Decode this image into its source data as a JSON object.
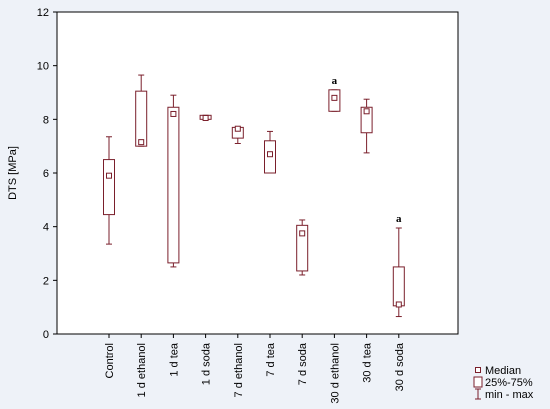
{
  "chart_data": {
    "type": "boxplot",
    "ylabel": "DTS [MPa]",
    "ylim": [
      0,
      12
    ],
    "yticks": [
      0,
      2,
      4,
      6,
      8,
      10,
      12
    ],
    "grid": false,
    "legend_position": "bottom-right",
    "legend": [
      {
        "key": "median",
        "label": "Median"
      },
      {
        "key": "box",
        "label": "25%-75%"
      },
      {
        "key": "whisker",
        "label": "min - max"
      }
    ],
    "colors": {
      "box": "#7a1f2b",
      "axis": "#000000",
      "background": "#eef2f8",
      "plot_bg": "#ffffff"
    },
    "categories": [
      "Control",
      "1 d ethanol",
      "1 d tea",
      "1 d soda",
      "7 d ethanol",
      "7 d tea",
      "7 d soda",
      "30 d ethanol",
      "30 d tea",
      "30 d soda"
    ],
    "boxes": [
      {
        "min": 3.35,
        "q1": 4.45,
        "median": 5.9,
        "q3": 6.5,
        "max": 7.35,
        "annotation": ""
      },
      {
        "min": 7.0,
        "q1": 7.0,
        "median": 7.15,
        "q3": 9.05,
        "max": 9.65,
        "annotation": ""
      },
      {
        "min": 2.5,
        "q1": 2.65,
        "median": 8.2,
        "q3": 8.45,
        "max": 8.9,
        "annotation": ""
      },
      {
        "min": 8.0,
        "q1": 8.0,
        "median": 8.05,
        "q3": 8.15,
        "max": 8.15,
        "annotation": ""
      },
      {
        "min": 7.1,
        "q1": 7.3,
        "median": 7.65,
        "q3": 7.7,
        "max": 7.7,
        "annotation": ""
      },
      {
        "min": 6.0,
        "q1": 6.0,
        "median": 6.7,
        "q3": 7.2,
        "max": 7.55,
        "annotation": ""
      },
      {
        "min": 2.2,
        "q1": 2.35,
        "median": 3.75,
        "q3": 4.05,
        "max": 4.25,
        "annotation": ""
      },
      {
        "min": 8.3,
        "q1": 8.3,
        "median": 8.8,
        "q3": 9.1,
        "max": 9.1,
        "annotation": "a"
      },
      {
        "min": 6.75,
        "q1": 7.5,
        "median": 8.3,
        "q3": 8.45,
        "max": 8.75,
        "annotation": ""
      },
      {
        "min": 0.65,
        "q1": 1.05,
        "median": 1.1,
        "q3": 2.5,
        "max": 3.95,
        "annotation": "a"
      }
    ]
  }
}
